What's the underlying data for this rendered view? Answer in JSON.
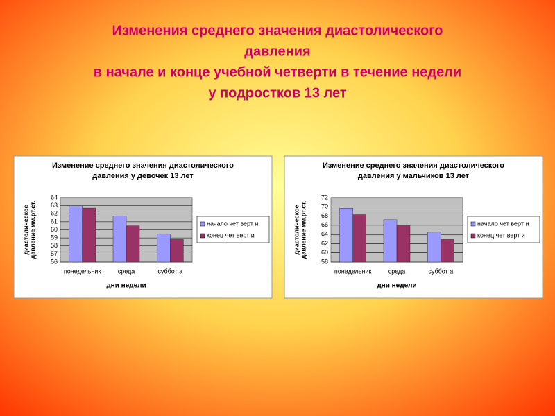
{
  "title_lines": [
    "Изменения  среднего значения диастолического",
    "давления",
    "в  начале  и  конце  учебной  четверти  в  течение  недели",
    "у  подростков  13  лет"
  ],
  "chart_data": [
    {
      "type": "bar",
      "title": [
        "Изменение среднего значения диастолического",
        "давления у девочек 13 лет"
      ],
      "y_label": [
        "диастолическое",
        "давление мм.рт.ст."
      ],
      "x_label": "дни недели",
      "categories": [
        "понедельник",
        "среда",
        "суббот а"
      ],
      "series": [
        {
          "name": "начало чет верт и",
          "color": "#9999ff",
          "values": [
            63,
            61.7,
            59.5
          ]
        },
        {
          "name": "конец чет верт и",
          "color": "#993366",
          "values": [
            62.7,
            60.5,
            58.8
          ]
        }
      ],
      "ylim": [
        56,
        64
      ],
      "yticks": [
        56,
        57,
        58,
        59,
        60,
        61,
        62,
        63,
        64
      ],
      "grid": true,
      "legend": "right"
    },
    {
      "type": "bar",
      "title": [
        "Изменение среднего значения диастолического",
        "давления у мальчиков 13 лет"
      ],
      "y_label": [
        "диастолическое",
        "давление мм.рт.ст."
      ],
      "x_label": "дни недели",
      "categories": [
        "понедельник",
        "среда",
        "суббот а"
      ],
      "series": [
        {
          "name": "начало чет верт и",
          "color": "#9999ff",
          "values": [
            69.7,
            67.2,
            64.5
          ]
        },
        {
          "name": "конец чет верт и",
          "color": "#993366",
          "values": [
            68.3,
            66,
            63
          ]
        }
      ],
      "ylim": [
        58,
        72
      ],
      "yticks": [
        58,
        60,
        62,
        64,
        66,
        68,
        70,
        72
      ],
      "grid": true,
      "legend": "right"
    }
  ]
}
